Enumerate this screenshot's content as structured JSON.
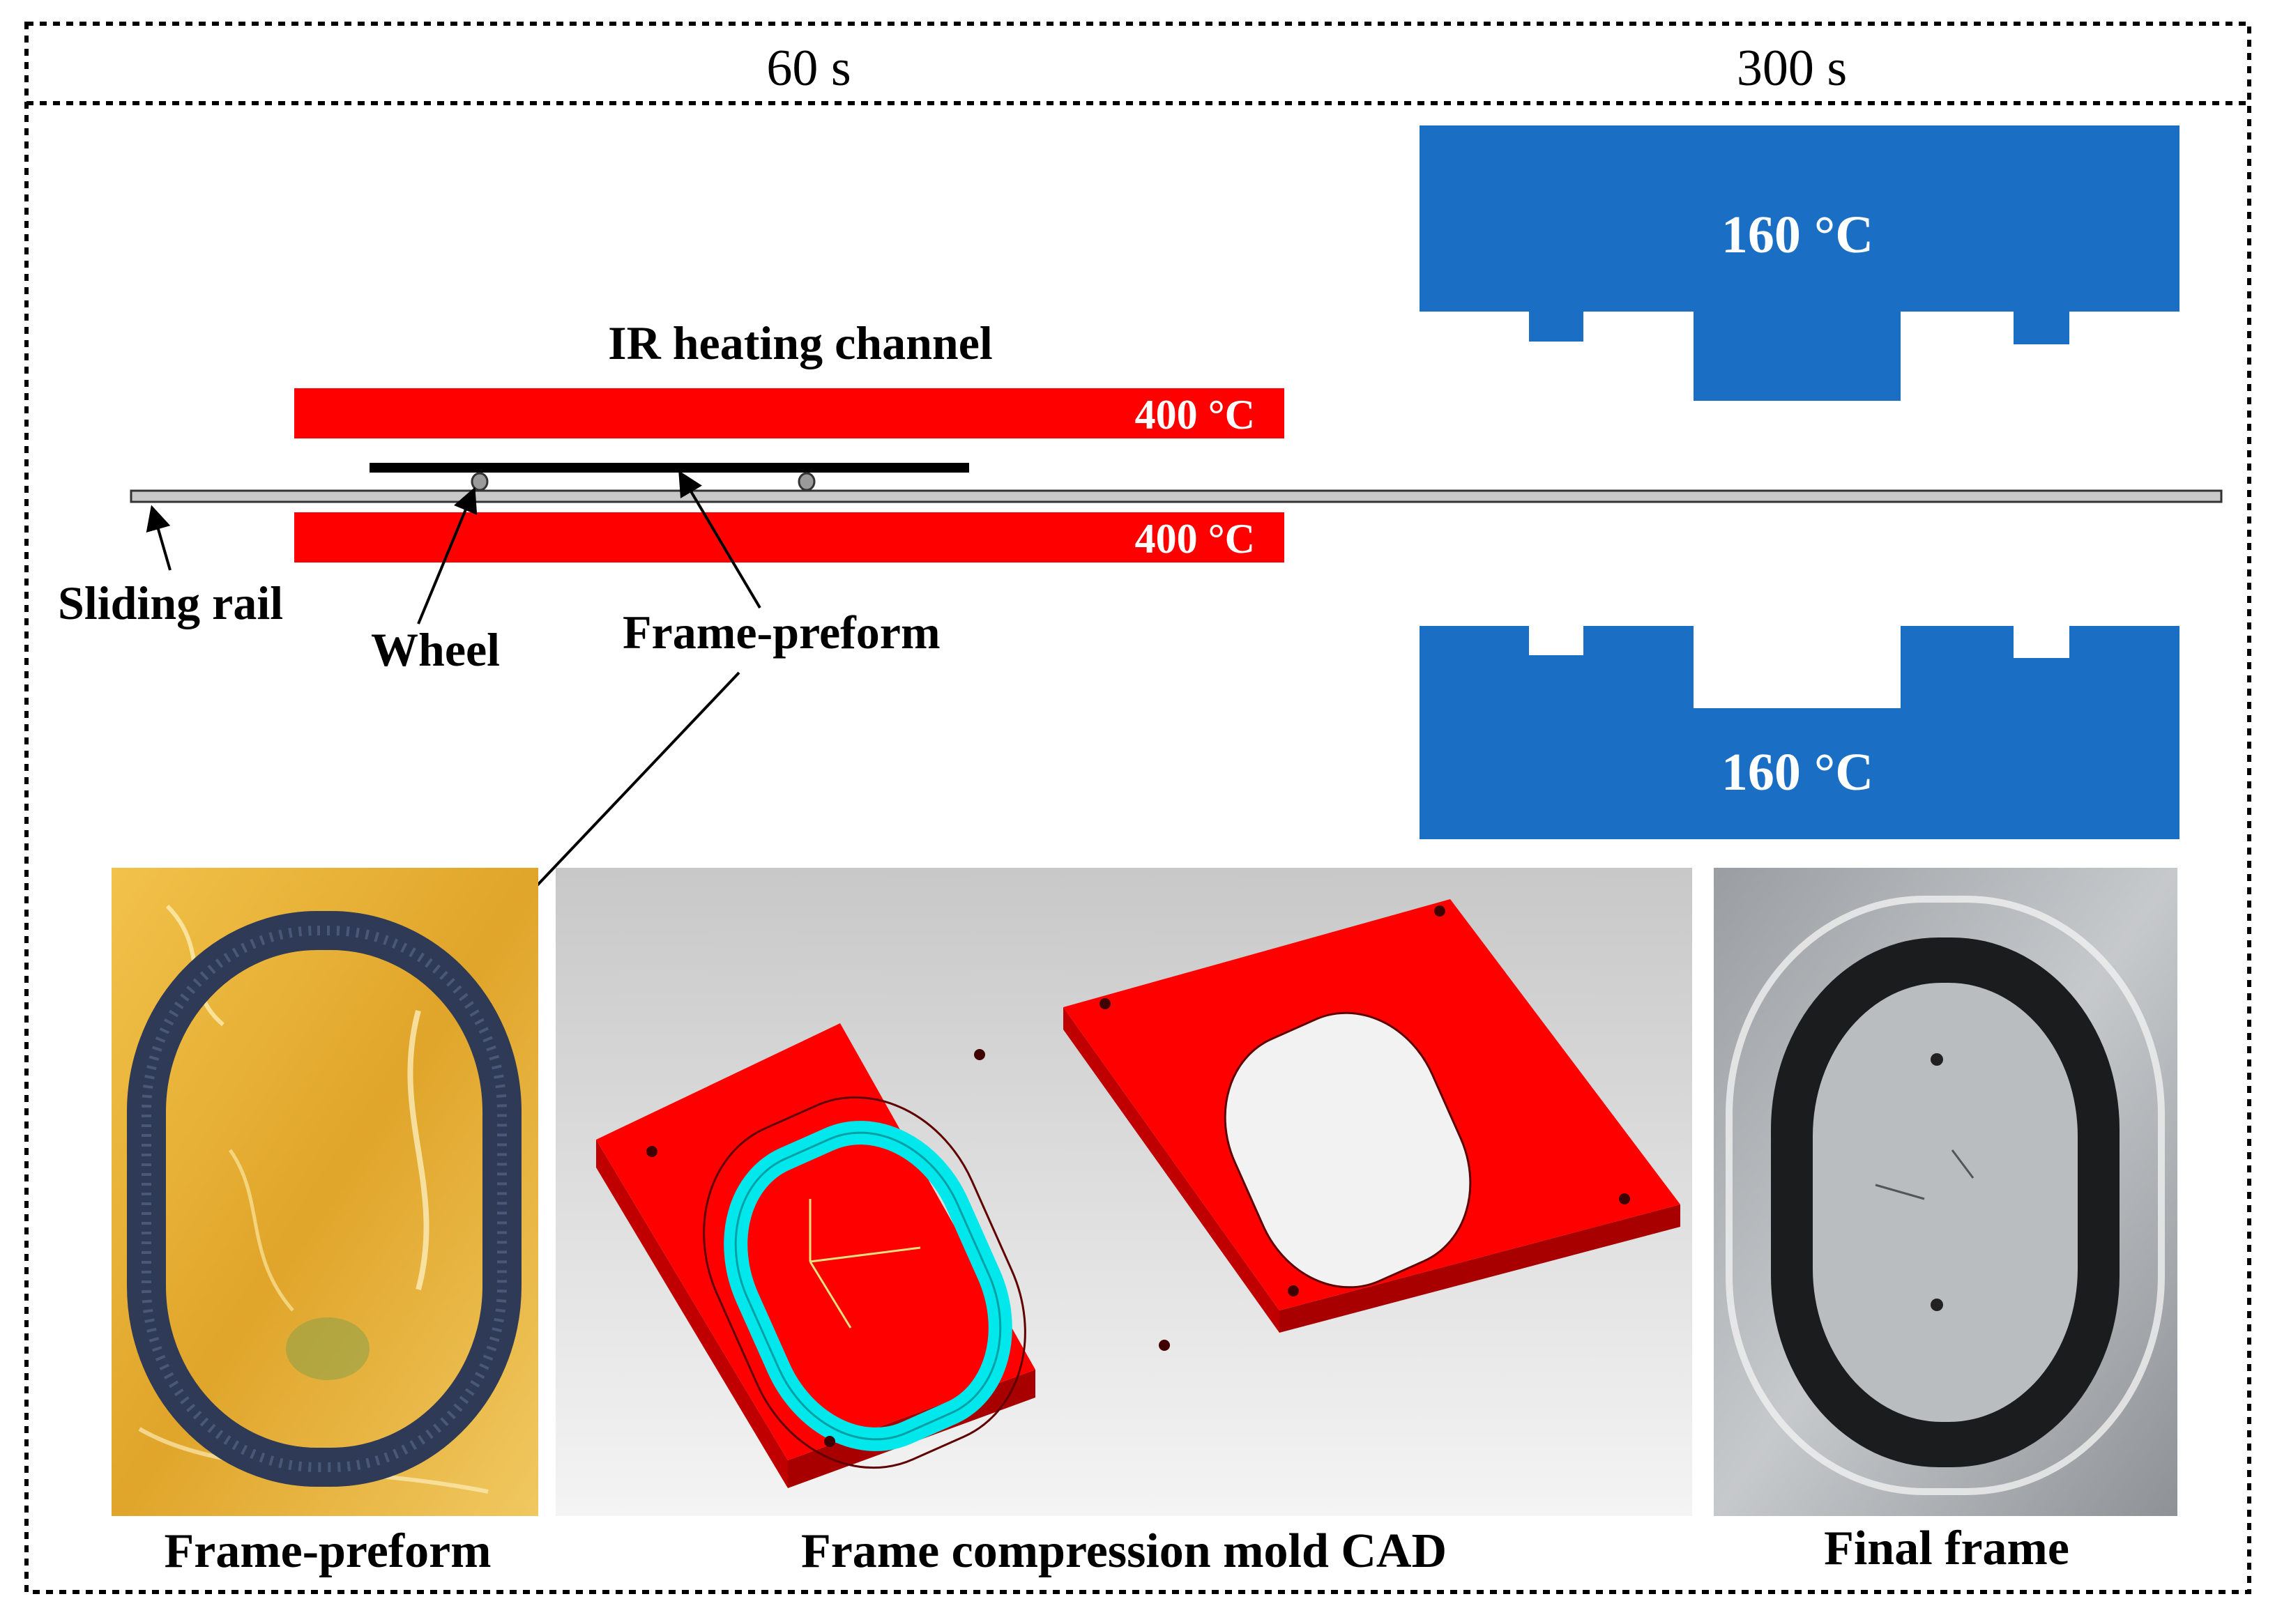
{
  "header": {
    "time_left": "60 s",
    "time_right": "300 s"
  },
  "heating": {
    "title": "IR heating channel",
    "top_temp": "400 °C",
    "bottom_temp": "400 °C"
  },
  "mold_press": {
    "top_temp": "160 °C",
    "bottom_temp": "160 °C"
  },
  "labels": {
    "sliding_rail": "Sliding rail",
    "wheel": "Wheel",
    "frame_preform": "Frame-preform"
  },
  "photos": {
    "preform_caption": "Frame-preform",
    "cad_caption": "Frame compression mold CAD",
    "final_caption": "Final frame"
  },
  "colors": {
    "heater": "#ff0000",
    "mold": "#1a6fc4",
    "cad_red": "#ff0000",
    "cad_cyan": "#00e8ec",
    "preform_bg": "#e8b030"
  }
}
